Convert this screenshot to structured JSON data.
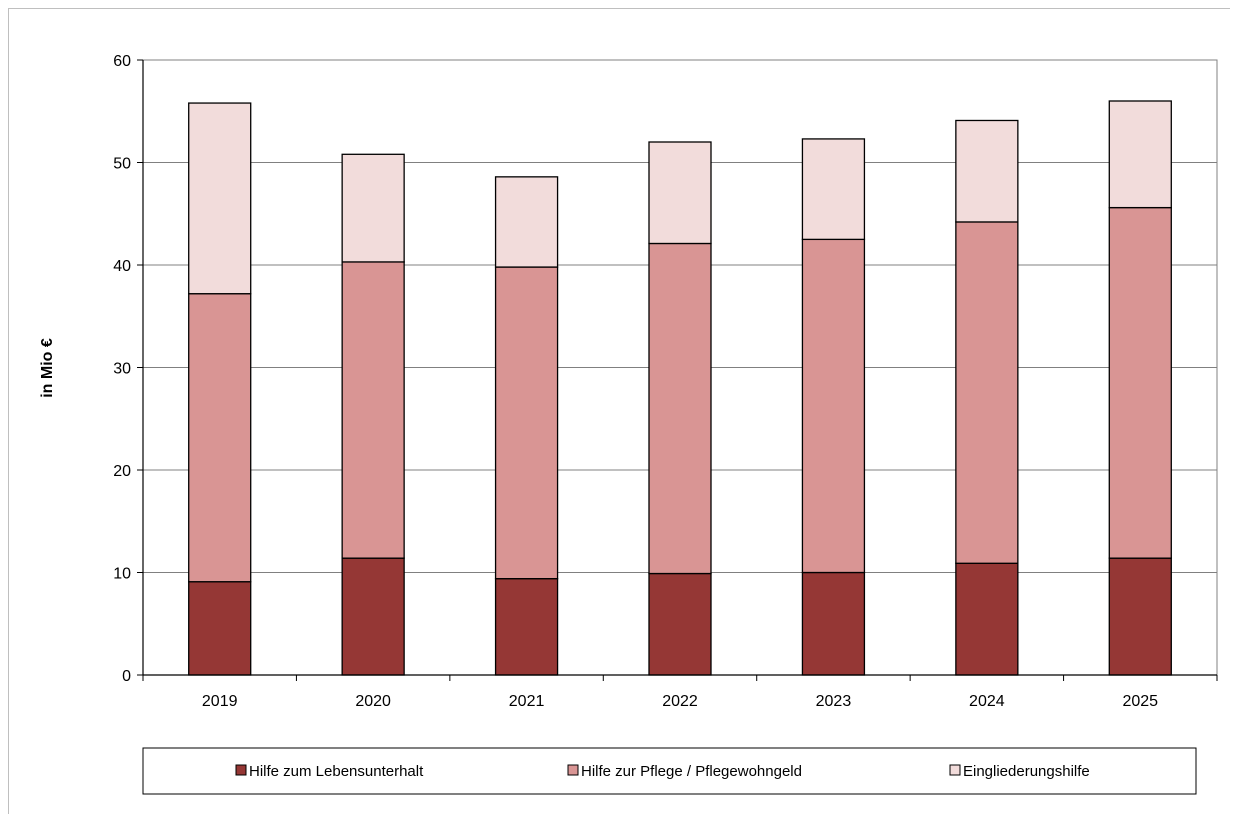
{
  "chart_data": {
    "type": "bar",
    "stacked": true,
    "categories": [
      "2019",
      "2020",
      "2021",
      "2022",
      "2023",
      "2024",
      "2025"
    ],
    "series": [
      {
        "name": "Hilfe zum Lebensunterhalt",
        "color": "#953735",
        "values": [
          9.1,
          11.4,
          9.4,
          9.9,
          10.0,
          10.9,
          11.4
        ]
      },
      {
        "name": "Hilfe zur Pflege / Pflegewohngeld",
        "color": "#d99594",
        "values": [
          28.1,
          28.9,
          30.4,
          32.2,
          32.5,
          33.3,
          34.2
        ]
      },
      {
        "name": "Eingliederungshilfe",
        "color": "#f2dcdb",
        "values": [
          18.6,
          10.5,
          8.8,
          9.9,
          9.8,
          9.9,
          10.4
        ]
      }
    ],
    "ylabel": "in Mio €",
    "xlabel": "",
    "ylim": [
      0,
      60
    ],
    "yticks": [
      0,
      10,
      20,
      30,
      40,
      50,
      60
    ],
    "grid": true,
    "legend_position": "bottom"
  }
}
